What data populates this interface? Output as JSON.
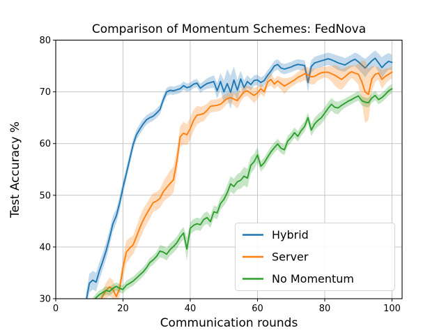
{
  "figure": {
    "background": "#ffffff"
  },
  "chart_data": {
    "type": "line",
    "title": "Comparison of Momentum Schemes: FedNova",
    "xlabel": "Communication rounds",
    "ylabel": "Test Accuracy %",
    "xlim": [
      0,
      103
    ],
    "ylim": [
      30,
      80
    ],
    "xticks": [
      0,
      20,
      40,
      60,
      80,
      100
    ],
    "yticks": [
      30,
      40,
      50,
      60,
      70,
      80
    ],
    "grid": true,
    "grid_color": "#c6c6c6",
    "legend_position": "lower-right-inside",
    "series": [
      {
        "name": "Hybrid",
        "color": "#1f77b4",
        "x_start": 9,
        "x_step": 1,
        "values": [
          29.5,
          33.0,
          33.6,
          33.2,
          35.4,
          37.3,
          39.3,
          41.8,
          44.5,
          46.0,
          48.5,
          51.5,
          54.2,
          57.0,
          59.8,
          61.7,
          62.8,
          63.8,
          64.6,
          65.0,
          65.3,
          65.9,
          66.6,
          68.5,
          70.0,
          70.3,
          70.2,
          70.4,
          70.6,
          71.2,
          70.8,
          71.0,
          71.5,
          71.7,
          70.7,
          71.2,
          71.6,
          71.8,
          72.0,
          70.2,
          72.0,
          70.0,
          71.6,
          69.9,
          72.3,
          70.3,
          72.5,
          70.8,
          72.0,
          71.4,
          72.2,
          72.3,
          71.8,
          72.2,
          73.2,
          74.0,
          75.0,
          75.3,
          74.6,
          74.4,
          74.6,
          74.8,
          75.1,
          75.3,
          75.2,
          75.1,
          71.8,
          74.9,
          75.6,
          75.8,
          76.0,
          76.2,
          76.4,
          76.2,
          75.9,
          75.6,
          75.4,
          75.2,
          75.6,
          76.0,
          76.3,
          75.8,
          75.2,
          74.6,
          75.3,
          76.0,
          76.5,
          75.6,
          74.7,
          75.4,
          75.9,
          75.7
        ],
        "band": [
          1.5,
          1.8,
          1.8,
          1.8,
          1.7,
          1.6,
          1.6,
          1.5,
          1.5,
          1.4,
          1.4,
          1.3,
          1.2,
          1.2,
          1.1,
          1.0,
          1.0,
          1.0,
          0.9,
          0.9,
          0.9,
          0.9,
          0.9,
          0.9,
          0.8,
          0.8,
          0.8,
          0.8,
          0.8,
          0.8,
          0.8,
          0.8,
          0.8,
          0.8,
          0.9,
          0.9,
          1.0,
          1.1,
          1.2,
          1.5,
          1.6,
          2.2,
          2.8,
          3.2,
          2.6,
          2.0,
          1.6,
          1.4,
          1.2,
          1.1,
          1.0,
          1.0,
          1.0,
          1.0,
          1.0,
          1.0,
          1.0,
          1.0,
          1.0,
          1.0,
          1.0,
          1.0,
          1.0,
          1.0,
          1.0,
          1.0,
          1.8,
          1.2,
          1.2,
          1.2,
          1.2,
          1.2,
          1.2,
          1.2,
          1.3,
          1.4,
          1.4,
          1.3,
          1.2,
          1.2,
          1.3,
          1.5,
          1.6,
          1.8,
          1.6,
          1.5,
          1.5,
          1.8,
          2.0,
          1.8,
          1.6,
          1.5
        ]
      },
      {
        "name": "Server",
        "color": "#ff7f0e",
        "x_start": 13,
        "x_step": 1,
        "values": [
          29.0,
          30.6,
          31.6,
          32.3,
          31.8,
          30.4,
          32.0,
          36.0,
          39.0,
          39.8,
          40.4,
          42.0,
          43.7,
          45.2,
          46.4,
          47.5,
          48.6,
          48.9,
          49.4,
          50.7,
          51.5,
          52.3,
          53.0,
          56.5,
          61.3,
          62.0,
          61.7,
          62.9,
          64.5,
          65.5,
          65.6,
          65.8,
          66.4,
          67.2,
          67.3,
          67.4,
          67.6,
          68.2,
          68.7,
          68.9,
          68.6,
          68.3,
          69.2,
          70.0,
          70.2,
          69.7,
          69.3,
          69.8,
          70.6,
          70.0,
          71.9,
          72.4,
          71.5,
          72.1,
          71.6,
          71.1,
          71.5,
          71.9,
          72.3,
          72.8,
          73.1,
          73.5,
          73.3,
          72.9,
          73.0,
          73.4,
          73.7,
          73.8,
          73.8,
          73.5,
          73.2,
          72.8,
          72.4,
          72.9,
          73.5,
          73.9,
          73.6,
          73.4,
          72.0,
          70.0,
          69.5,
          72.5,
          73.4,
          73.6,
          72.4,
          73.0,
          73.4,
          73.8
        ],
        "band": [
          1.0,
          1.2,
          1.5,
          1.8,
          1.8,
          1.5,
          1.5,
          2.0,
          2.2,
          2.0,
          1.8,
          2.0,
          2.2,
          2.2,
          2.0,
          2.0,
          1.8,
          1.8,
          1.8,
          2.0,
          2.2,
          2.5,
          2.5,
          2.2,
          2.0,
          2.2,
          2.0,
          2.2,
          2.0,
          1.8,
          1.5,
          1.5,
          1.3,
          1.2,
          1.2,
          1.2,
          1.2,
          1.2,
          1.0,
          1.0,
          1.2,
          1.5,
          1.2,
          1.0,
          1.0,
          1.2,
          1.5,
          1.2,
          1.0,
          1.0,
          1.0,
          1.2,
          1.0,
          1.0,
          1.2,
          1.5,
          1.2,
          1.0,
          1.0,
          1.0,
          1.2,
          1.2,
          1.5,
          1.5,
          1.5,
          1.2,
          1.2,
          1.0,
          1.2,
          1.5,
          2.0,
          2.2,
          2.0,
          1.8,
          1.5,
          1.2,
          1.5,
          2.0,
          4.0,
          6.0,
          5.0,
          2.5,
          1.5,
          1.2,
          1.8,
          1.5,
          1.2,
          1.2
        ]
      },
      {
        "name": "No Momentum",
        "color": "#2ca02c",
        "x_start": 11,
        "x_step": 1,
        "values": [
          29.4,
          30.2,
          30.8,
          31.2,
          31.6,
          31.4,
          32.0,
          32.4,
          32.0,
          31.8,
          32.6,
          33.0,
          33.4,
          34.0,
          34.6,
          35.2,
          36.0,
          37.0,
          37.5,
          38.2,
          39.2,
          39.0,
          38.6,
          39.5,
          40.1,
          40.8,
          41.9,
          42.7,
          39.6,
          43.6,
          44.2,
          44.5,
          44.3,
          45.3,
          45.7,
          44.9,
          46.8,
          46.6,
          48.4,
          49.2,
          50.5,
          52.2,
          51.7,
          52.6,
          52.9,
          53.7,
          53.3,
          55.8,
          56.5,
          57.8,
          55.6,
          56.3,
          57.4,
          58.4,
          59.2,
          59.9,
          59.1,
          58.8,
          60.5,
          61.2,
          62.1,
          61.4,
          62.5,
          63.3,
          65.0,
          62.6,
          63.8,
          64.5,
          65.0,
          65.9,
          66.8,
          67.6,
          67.0,
          66.9,
          67.4,
          67.8,
          68.2,
          68.5,
          68.9,
          69.2,
          68.3,
          68.0,
          67.9,
          68.8,
          69.3,
          68.5,
          68.9,
          69.5,
          70.2,
          70.6
        ],
        "band": [
          0.8,
          0.8,
          0.8,
          0.8,
          0.8,
          0.8,
          0.8,
          0.8,
          0.8,
          0.8,
          0.9,
          0.9,
          0.9,
          0.9,
          0.9,
          0.9,
          0.9,
          0.9,
          0.9,
          0.9,
          1.2,
          1.2,
          1.2,
          1.2,
          1.2,
          1.2,
          1.2,
          1.2,
          2.2,
          1.2,
          1.2,
          1.2,
          1.2,
          1.2,
          1.2,
          1.2,
          1.2,
          1.2,
          1.2,
          1.2,
          1.5,
          1.5,
          1.5,
          1.5,
          1.6,
          1.8,
          1.8,
          1.6,
          1.5,
          1.5,
          1.0,
          1.0,
          1.0,
          1.0,
          1.0,
          1.0,
          1.0,
          1.0,
          1.0,
          1.0,
          1.0,
          1.0,
          1.0,
          1.0,
          1.0,
          1.2,
          1.2,
          1.2,
          1.2,
          1.2,
          1.2,
          1.2,
          1.2,
          1.2,
          1.0,
          0.9,
          0.9,
          0.9,
          0.9,
          0.9,
          0.9,
          0.9,
          0.9,
          0.9,
          0.9,
          0.9,
          0.9,
          0.9,
          0.9,
          0.9
        ]
      }
    ]
  }
}
